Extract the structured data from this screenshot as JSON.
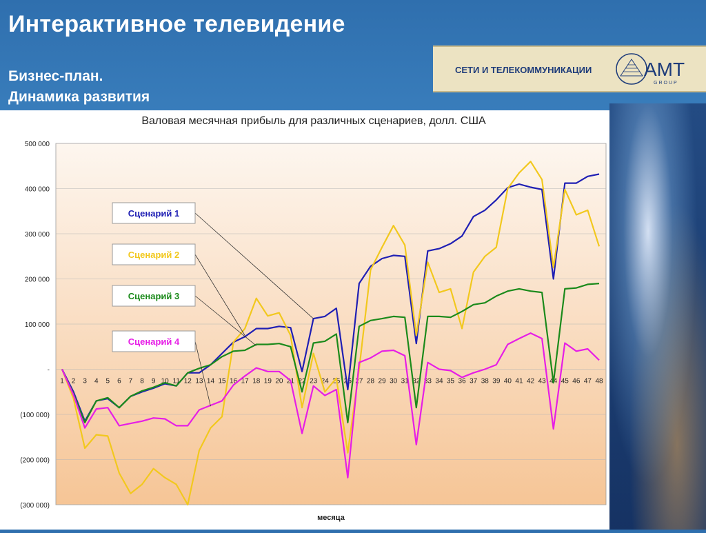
{
  "header": {
    "title": "Интерактивное телевидение",
    "subtitle_line1": "Бизнес-план.",
    "subtitle_line2": "Динамика развития"
  },
  "logo": {
    "text": "СЕТИ И ТЕЛЕКОММУНИКАЦИИ",
    "brand": "AMT",
    "brand_sub": "GROUP"
  },
  "chart_data": {
    "type": "line",
    "title": "Валовая месячная прибыль для различных сценариев, долл. США",
    "xlabel": "месяца",
    "ylabel": "",
    "ylim": [
      -300000,
      500000
    ],
    "y_ticks": [
      {
        "value": 500000,
        "label": "500 000"
      },
      {
        "value": 400000,
        "label": "400 000"
      },
      {
        "value": 300000,
        "label": "300 000"
      },
      {
        "value": 200000,
        "label": "200 000"
      },
      {
        "value": 100000,
        "label": "100 000"
      },
      {
        "value": 0,
        "label": "-"
      },
      {
        "value": -100000,
        "label": "(100 000)"
      },
      {
        "value": -200000,
        "label": "(200 000)"
      },
      {
        "value": -300000,
        "label": "(300 000)"
      }
    ],
    "grid": "horizontal",
    "legend": "callout labels on left",
    "categories": [
      "1",
      "2",
      "3",
      "4",
      "5",
      "6",
      "7",
      "8",
      "9",
      "10",
      "11",
      "12",
      "13",
      "14",
      "15",
      "16",
      "17",
      "18",
      "19",
      "20",
      "21",
      "22",
      "23",
      "24",
      "25",
      "26",
      "27",
      "28",
      "29",
      "30",
      "31",
      "32",
      "33",
      "34",
      "35",
      "36",
      "37",
      "38",
      "39",
      "40",
      "41",
      "42",
      "43",
      "44",
      "45",
      "46",
      "47",
      "48"
    ],
    "series": [
      {
        "name": "Сценарий 1",
        "color": "#1f1fb4",
        "values": [
          0,
          -50000,
          -115000,
          -70000,
          -65000,
          -85000,
          -60000,
          -50000,
          -42000,
          -32000,
          -37000,
          -8000,
          -8000,
          10000,
          35000,
          60000,
          72000,
          90000,
          90000,
          95000,
          92000,
          -5000,
          112000,
          117000,
          135000,
          -45000,
          190000,
          228000,
          245000,
          252000,
          250000,
          57000,
          262000,
          267000,
          278000,
          295000,
          338000,
          352000,
          375000,
          402000,
          410000,
          403000,
          398000,
          200000,
          412000,
          412000,
          427000,
          432000
        ]
      },
      {
        "name": "Сценарий 2",
        "color": "#f2c81e",
        "values": [
          0,
          -65000,
          -175000,
          -145000,
          -148000,
          -230000,
          -275000,
          -255000,
          -220000,
          -240000,
          -255000,
          -300000,
          -180000,
          -130000,
          -105000,
          60000,
          90000,
          157000,
          118000,
          125000,
          75000,
          -85000,
          35000,
          -50000,
          -20000,
          -185000,
          0,
          220000,
          270000,
          318000,
          275000,
          75000,
          237000,
          170000,
          178000,
          90000,
          215000,
          250000,
          270000,
          400000,
          435000,
          460000,
          420000,
          225000,
          398000,
          342000,
          352000,
          272000
        ]
      },
      {
        "name": "Сценарий 3",
        "color": "#1b8a1b",
        "values": [
          0,
          -55000,
          -118000,
          -70000,
          -63000,
          -85000,
          -60000,
          -48000,
          -40000,
          -30000,
          -37000,
          -8000,
          2000,
          10000,
          28000,
          40000,
          42000,
          55000,
          55000,
          57000,
          50000,
          -50000,
          58000,
          62000,
          78000,
          -118000,
          95000,
          108000,
          112000,
          117000,
          115000,
          -85000,
          117000,
          117000,
          115000,
          128000,
          143000,
          147000,
          162000,
          173000,
          178000,
          173000,
          170000,
          -30000,
          178000,
          180000,
          188000,
          190000
        ]
      },
      {
        "name": "Сценарий 4",
        "color": "#e61ee6",
        "values": [
          0,
          -57000,
          -130000,
          -88000,
          -85000,
          -125000,
          -120000,
          -115000,
          -108000,
          -110000,
          -125000,
          -125000,
          -90000,
          -80000,
          -70000,
          -35000,
          -15000,
          3000,
          -5000,
          -5000,
          -25000,
          -142000,
          -37000,
          -58000,
          -45000,
          -240000,
          15000,
          25000,
          40000,
          42000,
          30000,
          -167000,
          15000,
          0,
          -3000,
          -18000,
          -8000,
          0,
          10000,
          55000,
          68000,
          80000,
          68000,
          -132000,
          58000,
          40000,
          45000,
          20000
        ]
      }
    ]
  }
}
